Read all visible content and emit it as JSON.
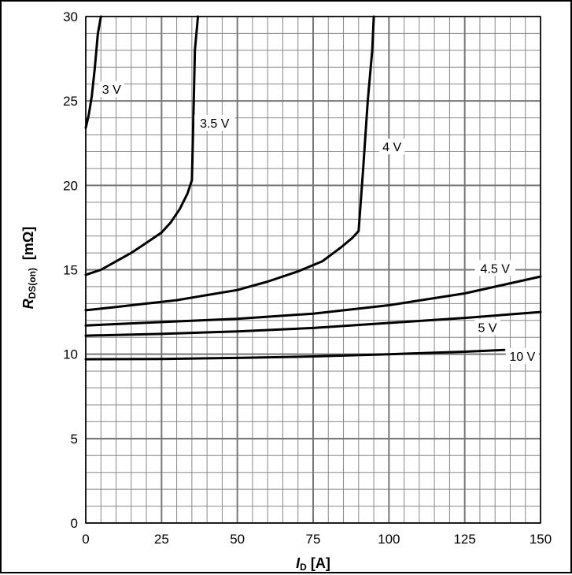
{
  "chart_data": {
    "type": "line",
    "title": "",
    "xlabel": {
      "main": "I",
      "sub": "D",
      "unit": "[A]"
    },
    "ylabel": {
      "main": "R",
      "sub": "DS(on)",
      "unit": "[mΩ]"
    },
    "xlim": [
      0,
      150
    ],
    "ylim": [
      0,
      30
    ],
    "x_ticks": [
      0,
      25,
      50,
      75,
      100,
      125,
      150
    ],
    "y_ticks": [
      0,
      5,
      10,
      15,
      20,
      25,
      30
    ],
    "grid": true,
    "series": [
      {
        "name": "3 V",
        "points": [
          [
            0,
            23.4
          ],
          [
            1,
            24.2
          ],
          [
            2,
            25.3
          ],
          [
            3,
            27.0
          ],
          [
            4,
            29.0
          ],
          [
            5,
            30.0
          ]
        ]
      },
      {
        "name": "3.5 V",
        "points": [
          [
            0,
            14.7
          ],
          [
            5,
            15.0
          ],
          [
            10,
            15.5
          ],
          [
            15,
            16.0
          ],
          [
            20,
            16.6
          ],
          [
            25,
            17.2
          ],
          [
            28,
            17.8
          ],
          [
            31,
            18.6
          ],
          [
            33.5,
            19.5
          ],
          [
            35,
            20.3
          ],
          [
            35.5,
            24.0
          ],
          [
            36,
            28.0
          ],
          [
            37,
            30.0
          ]
        ]
      },
      {
        "name": "4 V",
        "points": [
          [
            0,
            12.6
          ],
          [
            10,
            12.8
          ],
          [
            20,
            13.0
          ],
          [
            30,
            13.2
          ],
          [
            40,
            13.5
          ],
          [
            50,
            13.8
          ],
          [
            60,
            14.3
          ],
          [
            70,
            14.9
          ],
          [
            78,
            15.5
          ],
          [
            84,
            16.3
          ],
          [
            88,
            16.9
          ],
          [
            90,
            17.3
          ],
          [
            91.5,
            21.0
          ],
          [
            93,
            25.0
          ],
          [
            94.5,
            28.0
          ],
          [
            95,
            30.0
          ]
        ]
      },
      {
        "name": "4.5 V",
        "points": [
          [
            0,
            11.7
          ],
          [
            25,
            11.9
          ],
          [
            50,
            12.1
          ],
          [
            75,
            12.4
          ],
          [
            100,
            12.9
          ],
          [
            125,
            13.6
          ],
          [
            150,
            14.6
          ]
        ]
      },
      {
        "name": "5 V",
        "points": [
          [
            0,
            11.1
          ],
          [
            25,
            11.2
          ],
          [
            50,
            11.35
          ],
          [
            75,
            11.55
          ],
          [
            100,
            11.85
          ],
          [
            125,
            12.15
          ],
          [
            150,
            12.5
          ]
        ]
      },
      {
        "name": "10 V",
        "points": [
          [
            0,
            9.7
          ],
          [
            25,
            9.72
          ],
          [
            50,
            9.78
          ],
          [
            75,
            9.87
          ],
          [
            100,
            10.0
          ],
          [
            125,
            10.15
          ],
          [
            138,
            10.25
          ]
        ]
      }
    ],
    "labels": [
      {
        "text": "3 V",
        "series": "3 V",
        "x": 8.5,
        "y": 25.7
      },
      {
        "text": "3.5 V",
        "series": "3.5 V",
        "x": 42.5,
        "y": 23.7
      },
      {
        "text": "4 V",
        "series": "4 V",
        "x": 101,
        "y": 22.3
      },
      {
        "text": "4.5 V",
        "series": "4.5 V",
        "x": 135,
        "y": 15.1
      },
      {
        "text": "5 V",
        "series": "5 V",
        "x": 132.5,
        "y": 11.6
      },
      {
        "text": "10 V",
        "series": "10 V",
        "x": 144,
        "y": 9.9
      }
    ]
  }
}
